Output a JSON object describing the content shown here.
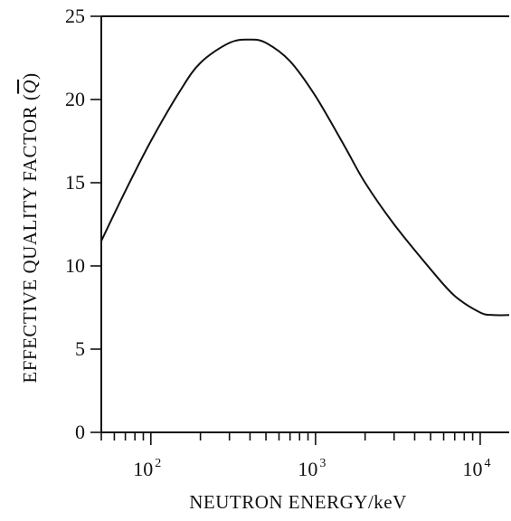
{
  "chart_data": {
    "type": "line",
    "title": "",
    "xlabel": "NEUTRON ENERGY/keV",
    "ylabel_prefix": "EFFECTIVE QUALITY FACTOR (",
    "ylabel_symbol": "Q",
    "ylabel_suffix": ")",
    "x_scale": "log",
    "xlim": [
      50,
      15000
    ],
    "ylim": [
      0,
      25
    ],
    "grid": false,
    "x_tick_labels": [
      {
        "base": "10",
        "exp": "2",
        "value": 100
      },
      {
        "base": "10",
        "exp": "3",
        "value": 1000
      },
      {
        "base": "10",
        "exp": "4",
        "value": 10000
      }
    ],
    "y_ticks": [
      {
        "label": "0",
        "value": 0
      },
      {
        "label": "5",
        "value": 5
      },
      {
        "label": "10",
        "value": 10
      },
      {
        "label": "15",
        "value": 15
      },
      {
        "label": "20",
        "value": 20
      },
      {
        "label": "25",
        "value": 25
      }
    ],
    "series": [
      {
        "x": [
          50,
          70,
          100,
          150,
          200,
          300,
          400,
          500,
          700,
          1000,
          1500,
          2000,
          3000,
          5000,
          7000,
          10000,
          12000,
          15000
        ],
        "y": [
          11.5,
          14.5,
          17.5,
          20.5,
          22.2,
          23.4,
          23.6,
          23.4,
          22.3,
          20.2,
          17.2,
          15.0,
          12.5,
          9.8,
          8.2,
          7.2,
          7.05,
          7.05
        ]
      }
    ]
  }
}
